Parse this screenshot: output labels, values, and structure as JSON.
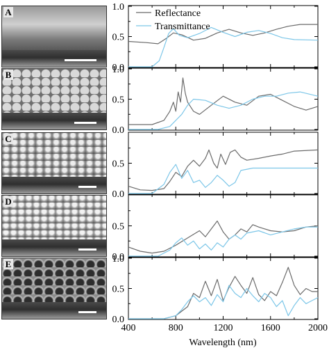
{
  "figure": {
    "panels": [
      {
        "label": "A"
      },
      {
        "label": "B"
      },
      {
        "label": "C"
      },
      {
        "label": "D"
      },
      {
        "label": "E"
      }
    ],
    "legend": [
      "Reflectance",
      "Transmittance"
    ],
    "xlabel": "Wavelength (nm)",
    "colors": {
      "reflectance": "#6a6a6a",
      "transmittance": "#7cc6e8"
    }
  },
  "chart_data": [
    {
      "type": "line",
      "panel": "A",
      "xlim": [
        400,
        2000
      ],
      "ylim": [
        0,
        1.0
      ],
      "yticks": [
        "0.0",
        "0.5",
        "1.0"
      ],
      "xticks": [],
      "series": [
        {
          "name": "Reflectance",
          "points": [
            [
              400,
              0.42
            ],
            [
              550,
              0.4
            ],
            [
              650,
              0.38
            ],
            [
              720,
              0.47
            ],
            [
              780,
              0.56
            ],
            [
              850,
              0.53
            ],
            [
              950,
              0.44
            ],
            [
              1050,
              0.47
            ],
            [
              1150,
              0.56
            ],
            [
              1250,
              0.62
            ],
            [
              1350,
              0.56
            ],
            [
              1450,
              0.52
            ],
            [
              1550,
              0.56
            ],
            [
              1650,
              0.62
            ],
            [
              1750,
              0.67
            ],
            [
              1850,
              0.7
            ],
            [
              2000,
              0.7
            ]
          ]
        },
        {
          "name": "Transmittance",
          "points": [
            [
              400,
              0.0
            ],
            [
              600,
              0.0
            ],
            [
              660,
              0.1
            ],
            [
              700,
              0.32
            ],
            [
              740,
              0.55
            ],
            [
              780,
              0.63
            ],
            [
              830,
              0.52
            ],
            [
              900,
              0.48
            ],
            [
              1000,
              0.55
            ],
            [
              1100,
              0.65
            ],
            [
              1200,
              0.57
            ],
            [
              1300,
              0.5
            ],
            [
              1400,
              0.57
            ],
            [
              1500,
              0.6
            ],
            [
              1600,
              0.55
            ],
            [
              1700,
              0.48
            ],
            [
              1800,
              0.45
            ],
            [
              2000,
              0.44
            ]
          ]
        }
      ]
    },
    {
      "type": "line",
      "panel": "B",
      "xlim": [
        400,
        2000
      ],
      "ylim": [
        0,
        1.0
      ],
      "yticks": [
        "0.0",
        "0.5",
        "1.0"
      ],
      "xticks": [],
      "series": [
        {
          "name": "Reflectance",
          "points": [
            [
              400,
              0.08
            ],
            [
              600,
              0.08
            ],
            [
              700,
              0.15
            ],
            [
              750,
              0.3
            ],
            [
              780,
              0.45
            ],
            [
              800,
              0.3
            ],
            [
              820,
              0.62
            ],
            [
              840,
              0.45
            ],
            [
              860,
              0.85
            ],
            [
              880,
              0.6
            ],
            [
              900,
              0.45
            ],
            [
              950,
              0.3
            ],
            [
              1000,
              0.25
            ],
            [
              1100,
              0.4
            ],
            [
              1200,
              0.55
            ],
            [
              1300,
              0.45
            ],
            [
              1400,
              0.4
            ],
            [
              1500,
              0.55
            ],
            [
              1600,
              0.58
            ],
            [
              1700,
              0.48
            ],
            [
              1800,
              0.38
            ],
            [
              1900,
              0.32
            ],
            [
              2000,
              0.38
            ]
          ]
        },
        {
          "name": "Transmittance",
          "points": [
            [
              400,
              0.0
            ],
            [
              650,
              0.0
            ],
            [
              750,
              0.05
            ],
            [
              800,
              0.15
            ],
            [
              850,
              0.25
            ],
            [
              900,
              0.4
            ],
            [
              950,
              0.5
            ],
            [
              1050,
              0.48
            ],
            [
              1150,
              0.4
            ],
            [
              1250,
              0.35
            ],
            [
              1350,
              0.4
            ],
            [
              1450,
              0.5
            ],
            [
              1550,
              0.55
            ],
            [
              1650,
              0.55
            ],
            [
              1750,
              0.6
            ],
            [
              1850,
              0.62
            ],
            [
              2000,
              0.55
            ]
          ]
        }
      ]
    },
    {
      "type": "line",
      "panel": "C",
      "xlim": [
        400,
        2000
      ],
      "ylim": [
        0,
        1.0
      ],
      "yticks": [
        "0.0",
        "0.5"
      ],
      "xticks": [],
      "series": [
        {
          "name": "Reflectance",
          "points": [
            [
              400,
              0.12
            ],
            [
              500,
              0.06
            ],
            [
              600,
              0.05
            ],
            [
              700,
              0.08
            ],
            [
              750,
              0.2
            ],
            [
              800,
              0.35
            ],
            [
              850,
              0.28
            ],
            [
              900,
              0.45
            ],
            [
              950,
              0.55
            ],
            [
              1000,
              0.45
            ],
            [
              1050,
              0.58
            ],
            [
              1080,
              0.72
            ],
            [
              1120,
              0.5
            ],
            [
              1150,
              0.42
            ],
            [
              1180,
              0.65
            ],
            [
              1220,
              0.48
            ],
            [
              1260,
              0.68
            ],
            [
              1300,
              0.72
            ],
            [
              1350,
              0.6
            ],
            [
              1400,
              0.55
            ],
            [
              1500,
              0.58
            ],
            [
              1600,
              0.62
            ],
            [
              1700,
              0.65
            ],
            [
              1800,
              0.7
            ],
            [
              2000,
              0.72
            ]
          ]
        },
        {
          "name": "Transmittance",
          "points": [
            [
              400,
              0.0
            ],
            [
              600,
              0.0
            ],
            [
              700,
              0.15
            ],
            [
              750,
              0.35
            ],
            [
              800,
              0.48
            ],
            [
              850,
              0.25
            ],
            [
              900,
              0.38
            ],
            [
              950,
              0.18
            ],
            [
              1000,
              0.22
            ],
            [
              1050,
              0.1
            ],
            [
              1100,
              0.18
            ],
            [
              1150,
              0.3
            ],
            [
              1200,
              0.22
            ],
            [
              1250,
              0.12
            ],
            [
              1300,
              0.18
            ],
            [
              1350,
              0.38
            ],
            [
              1450,
              0.42
            ],
            [
              1600,
              0.42
            ],
            [
              1800,
              0.42
            ],
            [
              2000,
              0.42
            ]
          ]
        }
      ]
    },
    {
      "type": "line",
      "panel": "D",
      "xlim": [
        400,
        2000
      ],
      "ylim": [
        0,
        1.0
      ],
      "yticks": [
        "0.0",
        "0.5"
      ],
      "xticks": [],
      "series": [
        {
          "name": "Reflectance",
          "points": [
            [
              400,
              0.15
            ],
            [
              500,
              0.08
            ],
            [
              600,
              0.05
            ],
            [
              700,
              0.08
            ],
            [
              800,
              0.18
            ],
            [
              900,
              0.3
            ],
            [
              1000,
              0.42
            ],
            [
              1050,
              0.32
            ],
            [
              1100,
              0.45
            ],
            [
              1150,
              0.58
            ],
            [
              1200,
              0.4
            ],
            [
              1250,
              0.28
            ],
            [
              1300,
              0.35
            ],
            [
              1350,
              0.45
            ],
            [
              1400,
              0.4
            ],
            [
              1450,
              0.52
            ],
            [
              1500,
              0.48
            ],
            [
              1600,
              0.42
            ],
            [
              1700,
              0.4
            ],
            [
              1800,
              0.42
            ],
            [
              1900,
              0.48
            ],
            [
              2000,
              0.5
            ]
          ]
        },
        {
          "name": "Transmittance",
          "points": [
            [
              400,
              0.0
            ],
            [
              650,
              0.0
            ],
            [
              750,
              0.1
            ],
            [
              800,
              0.22
            ],
            [
              850,
              0.3
            ],
            [
              900,
              0.18
            ],
            [
              950,
              0.25
            ],
            [
              1000,
              0.12
            ],
            [
              1050,
              0.2
            ],
            [
              1100,
              0.1
            ],
            [
              1150,
              0.22
            ],
            [
              1200,
              0.15
            ],
            [
              1250,
              0.28
            ],
            [
              1300,
              0.35
            ],
            [
              1350,
              0.28
            ],
            [
              1400,
              0.38
            ],
            [
              1500,
              0.42
            ],
            [
              1600,
              0.35
            ],
            [
              1700,
              0.4
            ],
            [
              1800,
              0.45
            ],
            [
              1900,
              0.48
            ],
            [
              2000,
              0.48
            ]
          ]
        }
      ]
    },
    {
      "type": "line",
      "panel": "E",
      "xlim": [
        400,
        2000
      ],
      "ylim": [
        0,
        1.0
      ],
      "yticks": [
        "0.0",
        "0.5",
        "1.0"
      ],
      "xticks": [
        "400",
        "800",
        "1200",
        "1600",
        "2000"
      ],
      "series": [
        {
          "name": "Reflectance",
          "points": [
            [
              400,
              0.0
            ],
            [
              700,
              0.0
            ],
            [
              800,
              0.05
            ],
            [
              900,
              0.2
            ],
            [
              950,
              0.42
            ],
            [
              1000,
              0.35
            ],
            [
              1050,
              0.62
            ],
            [
              1100,
              0.38
            ],
            [
              1150,
              0.65
            ],
            [
              1200,
              0.3
            ],
            [
              1250,
              0.52
            ],
            [
              1300,
              0.7
            ],
            [
              1350,
              0.55
            ],
            [
              1400,
              0.42
            ],
            [
              1450,
              0.68
            ],
            [
              1500,
              0.4
            ],
            [
              1550,
              0.3
            ],
            [
              1600,
              0.45
            ],
            [
              1650,
              0.38
            ],
            [
              1700,
              0.6
            ],
            [
              1750,
              0.85
            ],
            [
              1800,
              0.55
            ],
            [
              1850,
              0.4
            ],
            [
              1900,
              0.5
            ],
            [
              1950,
              0.45
            ],
            [
              2000,
              0.45
            ]
          ]
        },
        {
          "name": "Transmittance",
          "points": [
            [
              400,
              0.0
            ],
            [
              700,
              0.0
            ],
            [
              800,
              0.05
            ],
            [
              850,
              0.15
            ],
            [
              900,
              0.28
            ],
            [
              950,
              0.38
            ],
            [
              1000,
              0.28
            ],
            [
              1050,
              0.35
            ],
            [
              1100,
              0.22
            ],
            [
              1150,
              0.4
            ],
            [
              1200,
              0.28
            ],
            [
              1250,
              0.55
            ],
            [
              1300,
              0.42
            ],
            [
              1350,
              0.35
            ],
            [
              1400,
              0.5
            ],
            [
              1450,
              0.38
            ],
            [
              1500,
              0.28
            ],
            [
              1550,
              0.42
            ],
            [
              1600,
              0.35
            ],
            [
              1650,
              0.2
            ],
            [
              1700,
              0.3
            ],
            [
              1750,
              0.05
            ],
            [
              1800,
              0.22
            ],
            [
              1850,
              0.35
            ],
            [
              1900,
              0.25
            ],
            [
              1950,
              0.3
            ],
            [
              2000,
              0.35
            ]
          ]
        }
      ]
    }
  ]
}
